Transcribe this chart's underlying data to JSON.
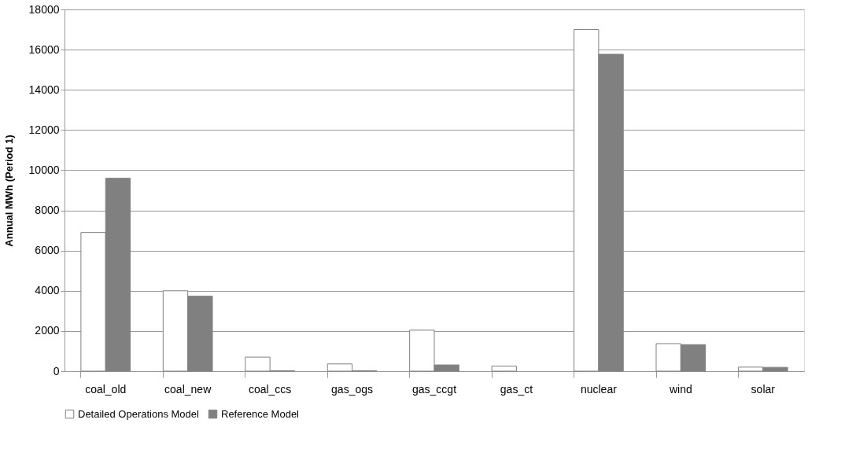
{
  "chart_data": {
    "type": "bar",
    "ylabel": "Annual MWh  (Period 1)",
    "categories": [
      "coal_old",
      "coal_new",
      "coal_ccs",
      "gas_ogs",
      "gas_ccgt",
      "gas_ct",
      "nuclear",
      "wind",
      "solar"
    ],
    "series": [
      {
        "name": "Detailed Operations Model",
        "color": "#ffffff",
        "values": [
          6900,
          4000,
          700,
          360,
          2040,
          250,
          17000,
          1370,
          200
        ]
      },
      {
        "name": "Reference Model",
        "color": "#808080",
        "values": [
          9600,
          3730,
          20,
          20,
          310,
          null,
          15770,
          1320,
          190
        ]
      }
    ],
    "ylim": [
      0,
      18000
    ],
    "yticks": [
      0,
      2000,
      4000,
      6000,
      8000,
      10000,
      12000,
      14000,
      16000,
      18000
    ],
    "grid": "y",
    "legend": "bottom"
  }
}
